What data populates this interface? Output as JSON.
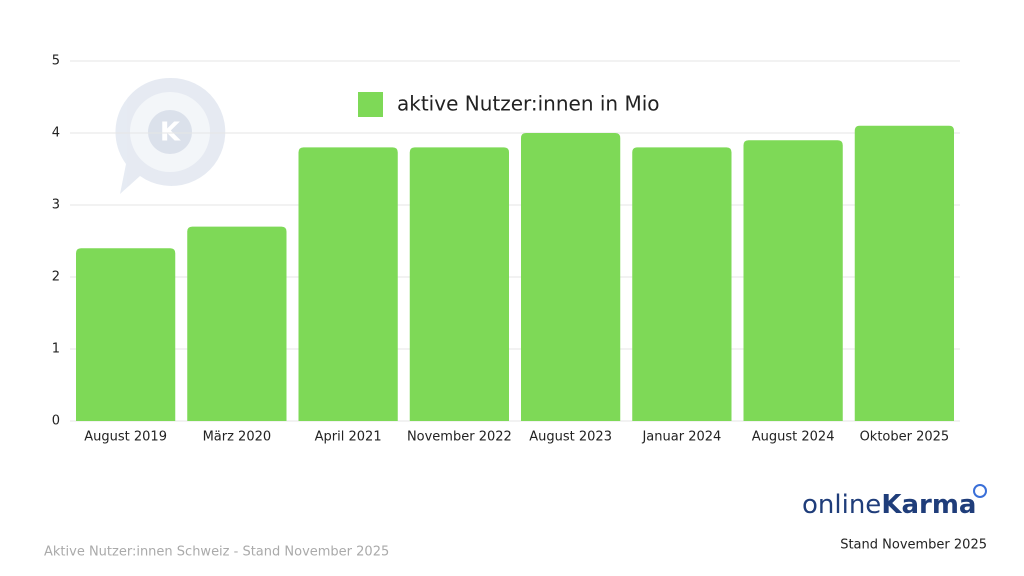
{
  "chart_data": {
    "type": "bar",
    "categories": [
      "August 2019",
      "März 2020",
      "April 2021",
      "November 2022",
      "August 2023",
      "Januar 2024",
      "August 2024",
      "Oktober 2025"
    ],
    "series": [
      {
        "name": "aktive Nutzer:innen in Mio",
        "color": "#7ed957",
        "values": [
          2.4,
          2.7,
          3.8,
          3.8,
          4.0,
          3.8,
          3.9,
          4.1
        ]
      }
    ],
    "ylim": [
      0,
      5
    ],
    "yticks": [
      0,
      1,
      2,
      3,
      4,
      5
    ],
    "grid": true,
    "legend": "top",
    "logo": [
      "online",
      "Karma"
    ],
    "notes": [
      "Stand November 2025",
      "Aktive Nutzer:innen Schweiz - Stand November 2025"
    ]
  }
}
